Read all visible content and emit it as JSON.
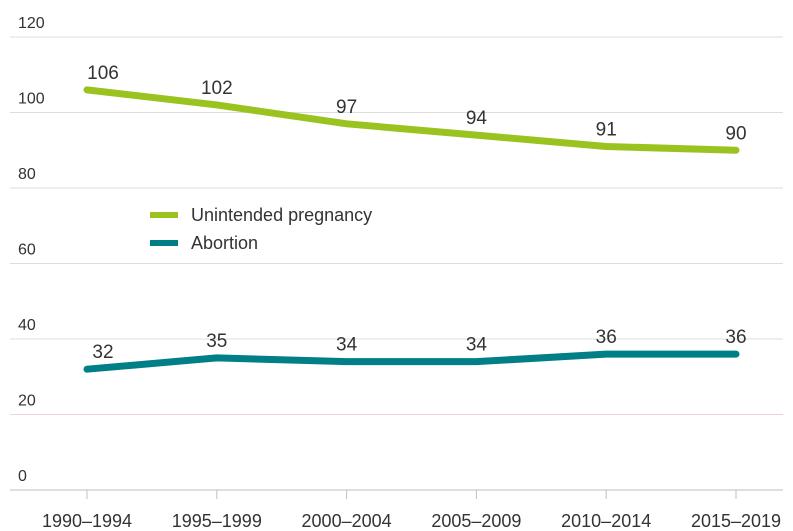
{
  "chart_data": {
    "type": "line",
    "title": "",
    "xlabel": "",
    "ylabel": "",
    "categories": [
      "1990–1994",
      "1995–1999",
      "2000–2004",
      "2005–2009",
      "2010–2014",
      "2015–2019"
    ],
    "series": [
      {
        "name": "Unintended pregnancy",
        "color": "#9bc31f",
        "values": [
          106,
          102,
          97,
          94,
          91,
          90
        ]
      },
      {
        "name": "Abortion",
        "color": "#007f86",
        "values": [
          32,
          35,
          34,
          34,
          36,
          36
        ]
      }
    ],
    "ylim": [
      0,
      120
    ],
    "yticks": [
      "0",
      "20",
      "40",
      "60",
      "80",
      "100",
      "120"
    ],
    "data_labels": true,
    "grid": true,
    "legend": "center-left"
  }
}
